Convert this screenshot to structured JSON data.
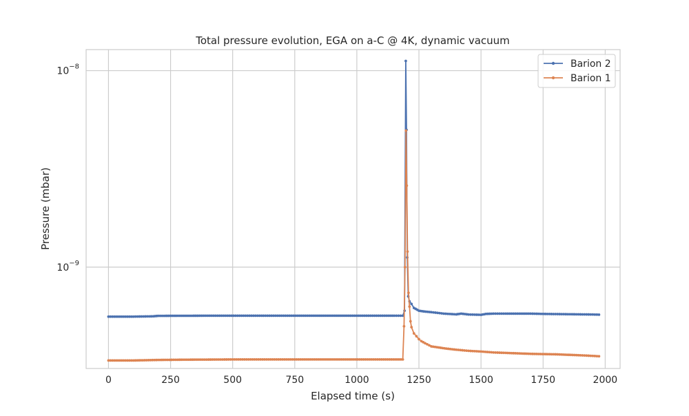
{
  "chart_data": {
    "type": "line",
    "title": "Total pressure evolution, EGA on a-C @ 4K, dynamic vacuum",
    "xlabel": "Elapsed time (s)",
    "ylabel": "Pressure (mbar)",
    "x_scale": "linear",
    "y_scale": "log",
    "xlim": [
      -90,
      2060
    ],
    "ylim": [
      3.05e-10,
      1.28e-08
    ],
    "x_ticks": [
      0,
      250,
      500,
      750,
      1000,
      1250,
      1500,
      1750,
      2000
    ],
    "x_tick_labels": [
      "0",
      "250",
      "500",
      "750",
      "1000",
      "1250",
      "1500",
      "1750",
      "2000"
    ],
    "y_ticks": [
      1e-09,
      1e-08
    ],
    "y_tick_labels": [
      {
        "base": "10",
        "exp": "−9"
      },
      {
        "base": "10",
        "exp": "−8"
      }
    ],
    "grid": true,
    "legend_position": "upper right",
    "series": [
      {
        "name": "Barion 2",
        "color": "#4c72b0",
        "marker": "circle",
        "points": [
          [
            0,
            5.6e-10
          ],
          [
            100,
            5.6e-10
          ],
          [
            180,
            5.62e-10
          ],
          [
            200,
            5.65e-10
          ],
          [
            400,
            5.66e-10
          ],
          [
            600,
            5.66e-10
          ],
          [
            800,
            5.66e-10
          ],
          [
            1000,
            5.66e-10
          ],
          [
            1150,
            5.66e-10
          ],
          [
            1185,
            5.66e-10
          ],
          [
            1192,
            6e-10
          ],
          [
            1197,
            1.12e-08
          ],
          [
            1200,
            5e-09
          ],
          [
            1203,
            1.12e-09
          ],
          [
            1207,
            7.1e-10
          ],
          [
            1212,
            6.7e-10
          ],
          [
            1220,
            6.5e-10
          ],
          [
            1230,
            6.2e-10
          ],
          [
            1250,
            6e-10
          ],
          [
            1270,
            5.95e-10
          ],
          [
            1300,
            5.9e-10
          ],
          [
            1350,
            5.8e-10
          ],
          [
            1400,
            5.75e-10
          ],
          [
            1420,
            5.8e-10
          ],
          [
            1450,
            5.74e-10
          ],
          [
            1500,
            5.72e-10
          ],
          [
            1520,
            5.78e-10
          ],
          [
            1550,
            5.8e-10
          ],
          [
            1600,
            5.8e-10
          ],
          [
            1700,
            5.8e-10
          ],
          [
            1750,
            5.78e-10
          ],
          [
            1800,
            5.77e-10
          ],
          [
            1850,
            5.76e-10
          ],
          [
            1900,
            5.75e-10
          ],
          [
            1950,
            5.74e-10
          ],
          [
            1975,
            5.73e-10
          ]
        ]
      },
      {
        "name": "Barion 1",
        "color": "#dd8452",
        "marker": "circle",
        "points": [
          [
            0,
            3.35e-10
          ],
          [
            100,
            3.35e-10
          ],
          [
            200,
            3.37e-10
          ],
          [
            300,
            3.38e-10
          ],
          [
            500,
            3.39e-10
          ],
          [
            700,
            3.39e-10
          ],
          [
            900,
            3.39e-10
          ],
          [
            1100,
            3.39e-10
          ],
          [
            1185,
            3.39e-10
          ],
          [
            1190,
            5e-10
          ],
          [
            1194,
            1e-09
          ],
          [
            1198,
            4.95e-09
          ],
          [
            1201,
            2.6e-09
          ],
          [
            1204,
            1.2e-09
          ],
          [
            1208,
            7.4e-10
          ],
          [
            1212,
            6.3e-10
          ],
          [
            1216,
            5.3e-10
          ],
          [
            1220,
            4.95e-10
          ],
          [
            1230,
            4.6e-10
          ],
          [
            1240,
            4.45e-10
          ],
          [
            1250,
            4.3e-10
          ],
          [
            1260,
            4.2e-10
          ],
          [
            1275,
            4.1e-10
          ],
          [
            1300,
            3.95e-10
          ],
          [
            1330,
            3.9e-10
          ],
          [
            1360,
            3.85e-10
          ],
          [
            1400,
            3.8e-10
          ],
          [
            1450,
            3.75e-10
          ],
          [
            1500,
            3.72e-10
          ],
          [
            1550,
            3.68e-10
          ],
          [
            1600,
            3.66e-10
          ],
          [
            1700,
            3.62e-10
          ],
          [
            1800,
            3.6e-10
          ],
          [
            1900,
            3.56e-10
          ],
          [
            1975,
            3.52e-10
          ]
        ]
      }
    ]
  }
}
